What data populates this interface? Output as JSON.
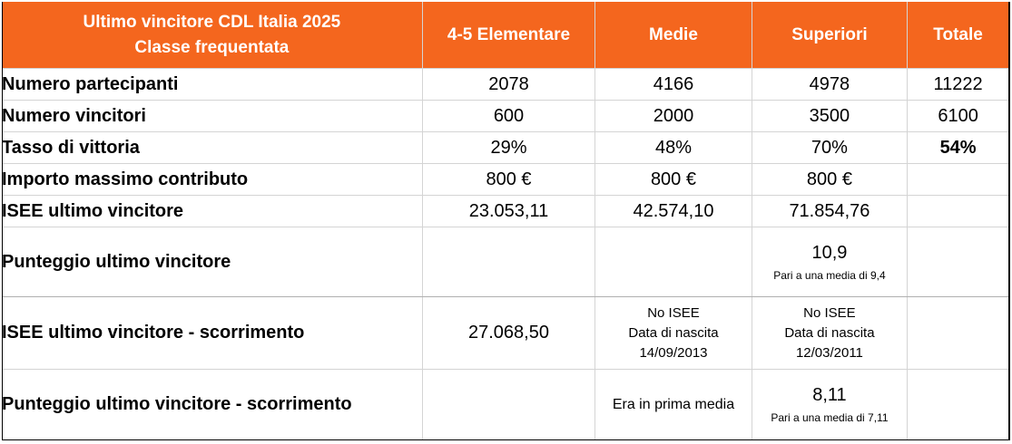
{
  "header": {
    "title_line1": "Ultimo vincitore CDL Italia 2025",
    "title_line2": "Classe frequentata",
    "col1": "4-5 Elementare",
    "col2": "Medie",
    "col3": "Superiori",
    "col4": "Totale"
  },
  "rows": {
    "partecipanti": {
      "label": "Numero partecipanti",
      "c1": "2078",
      "c2": "4166",
      "c3": "4978",
      "c4": "11222"
    },
    "vincitori": {
      "label": "Numero vincitori",
      "c1": "600",
      "c2": "2000",
      "c3": "3500",
      "c4": "6100"
    },
    "tasso": {
      "label": "Tasso di vittoria",
      "c1": "29%",
      "c2": "48%",
      "c3": "70%",
      "c4": "54%"
    },
    "importo": {
      "label": "Importo massimo contributo",
      "c1": "800 €",
      "c2": "800 €",
      "c3": "800 €",
      "c4": ""
    },
    "isee": {
      "label": "ISEE ultimo vincitore",
      "c1": "23.053,11",
      "c2": "42.574,10",
      "c3": "71.854,76",
      "c4": ""
    },
    "punteggio": {
      "label": "Punteggio ultimo vincitore",
      "c1": "",
      "c2": "",
      "c3": "10,9",
      "c3_note": "Pari a una media di 9,4",
      "c4": ""
    },
    "isee_scorr": {
      "label": "ISEE ultimo vincitore - scorrimento",
      "c1": "27.068,50",
      "c2_l1": "No ISEE",
      "c2_l2": "Data di nascita",
      "c2_l3": "14/09/2013",
      "c3_l1": "No ISEE",
      "c3_l2": "Data di nascita",
      "c3_l3": "12/03/2011",
      "c4": ""
    },
    "punteggio_scorr": {
      "label": "Punteggio ultimo vincitore - scorrimento",
      "c1": "",
      "c2": "Era in prima media",
      "c3": "8,11",
      "c3_note": "Pari a una media di 7,11",
      "c4": ""
    }
  }
}
